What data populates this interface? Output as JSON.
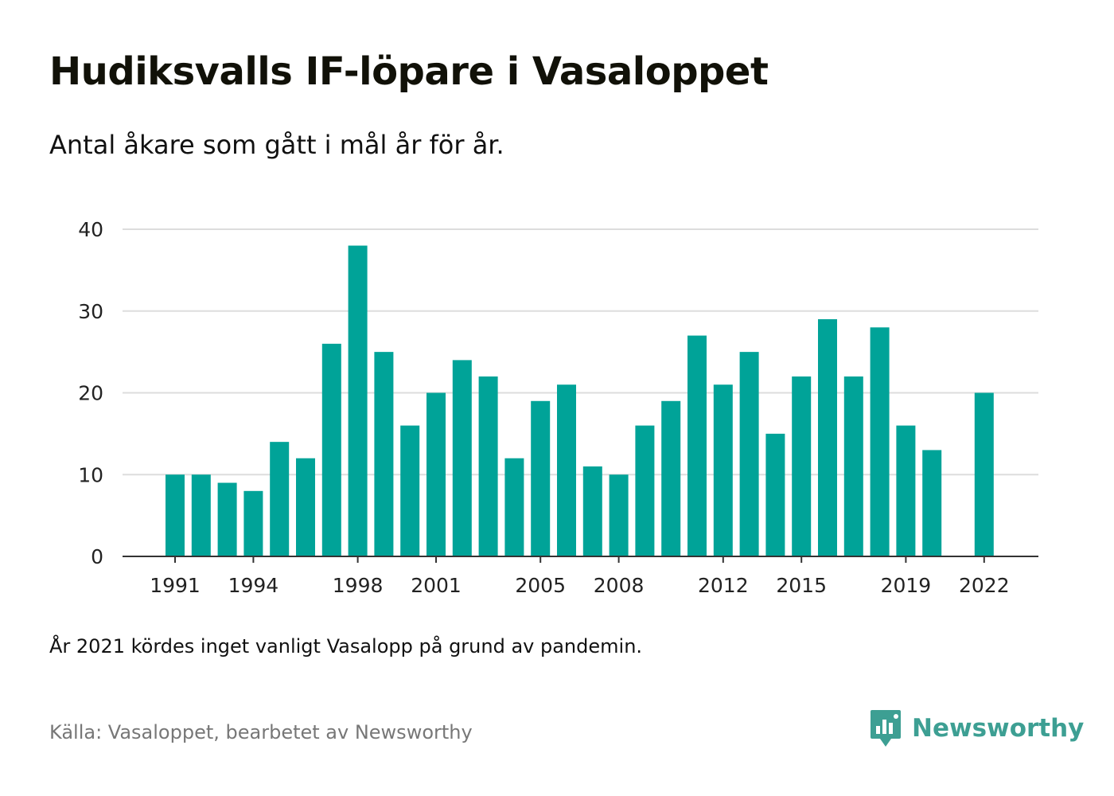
{
  "header": {
    "title": "Hudiksvalls IF-löpare i Vasaloppet",
    "subtitle": "Antal åkare som gått i mål år för år."
  },
  "footer": {
    "note": "År 2021 kördes inget vanligt Vasalopp på grund av pandemin.",
    "source": "Källa: Vasaloppet, bearbetet av Newsworthy",
    "brand": "Newsworthy"
  },
  "colors": {
    "bar": "#00a398",
    "grid": "#dddddd",
    "axis": "#333333",
    "brand": "#3d9f93"
  },
  "chart_data": {
    "type": "bar",
    "title": "Hudiksvalls IF-löpare i Vasaloppet",
    "subtitle": "Antal åkare som gått i mål år för år.",
    "xlabel": "",
    "ylabel": "",
    "ylim": [
      0,
      40
    ],
    "yticks": [
      0,
      10,
      20,
      30,
      40
    ],
    "xtick_labels": [
      "1991",
      "1994",
      "1998",
      "2001",
      "2005",
      "2008",
      "2012",
      "2015",
      "2019",
      "2022"
    ],
    "grid": true,
    "legend": "none",
    "categories": [
      1991,
      1992,
      1993,
      1994,
      1995,
      1996,
      1997,
      1998,
      1999,
      2000,
      2001,
      2002,
      2003,
      2004,
      2005,
      2006,
      2007,
      2008,
      2009,
      2010,
      2011,
      2012,
      2013,
      2014,
      2015,
      2016,
      2017,
      2018,
      2019,
      2020,
      2021,
      2022
    ],
    "values": [
      10,
      10,
      9,
      8,
      14,
      12,
      26,
      38,
      25,
      16,
      20,
      24,
      22,
      12,
      19,
      21,
      11,
      10,
      16,
      19,
      27,
      21,
      25,
      15,
      22,
      29,
      22,
      28,
      16,
      13,
      null,
      20
    ]
  }
}
